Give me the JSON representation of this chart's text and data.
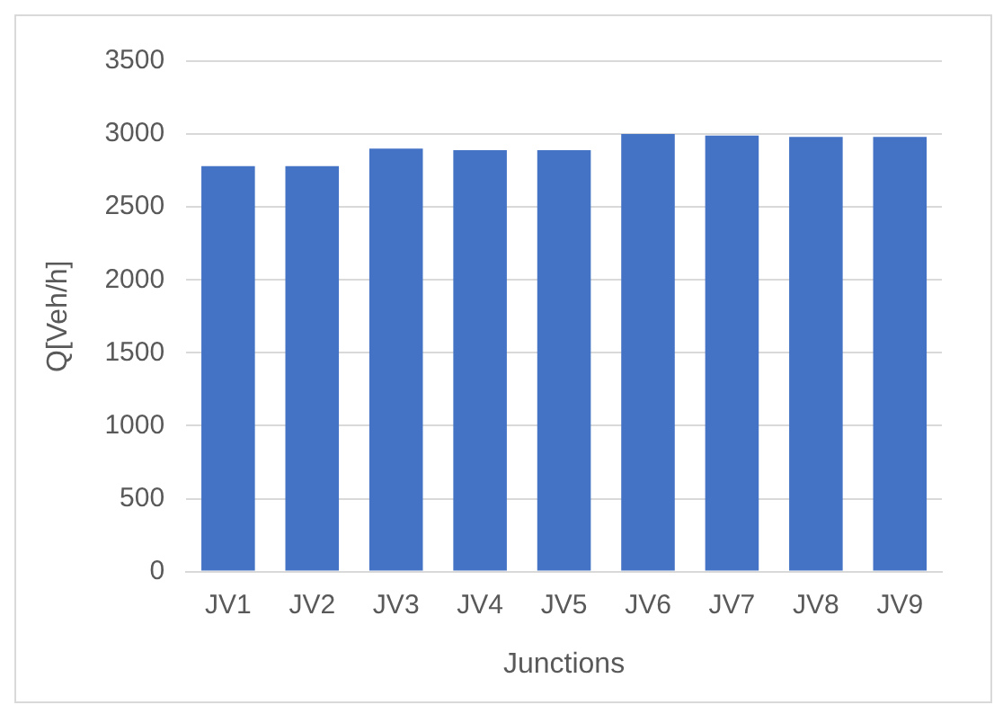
{
  "chart_data": {
    "type": "bar",
    "xlabel": "Junctions",
    "ylabel": "Q[Veh/h]",
    "categories": [
      "JV1",
      "JV2",
      "JV3",
      "JV4",
      "JV5",
      "JV6",
      "JV7",
      "JV8",
      "JV9"
    ],
    "values": [
      2780,
      2780,
      2900,
      2890,
      2890,
      3000,
      2990,
      2980,
      2980
    ],
    "color": "#4472c4",
    "ylim": [
      0,
      3500
    ],
    "yticks": [
      0,
      500,
      1000,
      1500,
      2000,
      2500,
      3000,
      3500
    ],
    "grid": "y",
    "legend": false
  }
}
